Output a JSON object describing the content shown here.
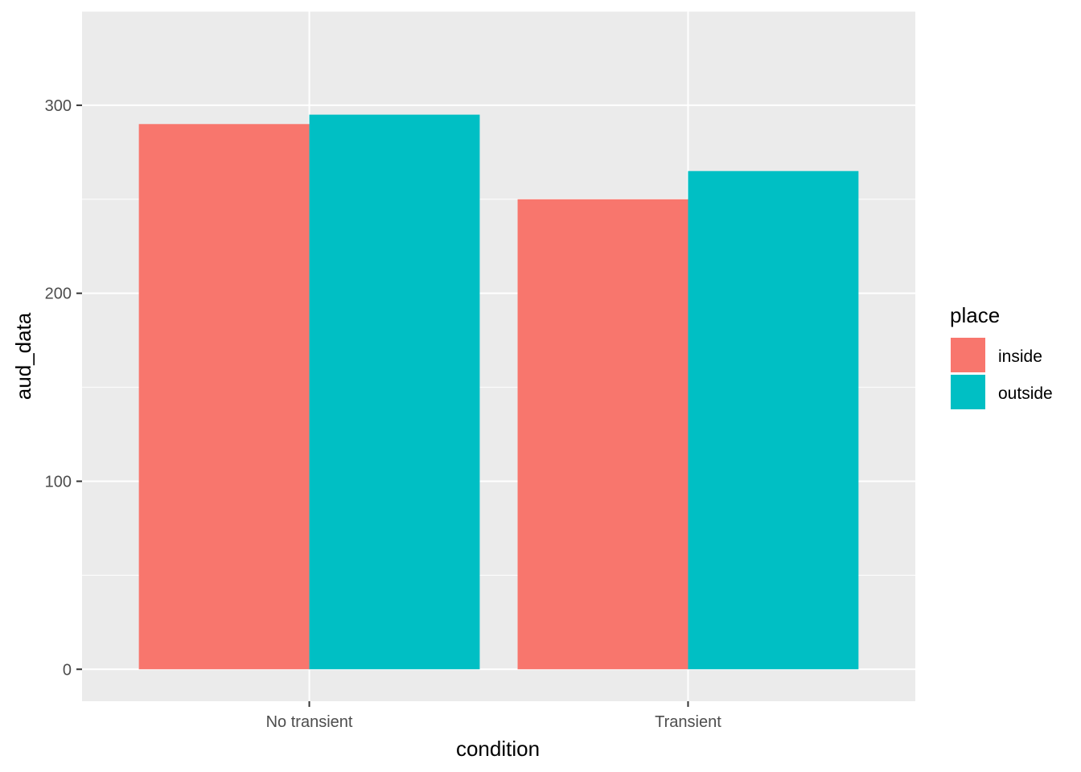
{
  "chart_data": {
    "type": "bar",
    "title": "",
    "xlabel": "condition",
    "ylabel": "aud_data",
    "categories": [
      "No transient",
      "Transient"
    ],
    "series": [
      {
        "name": "inside",
        "values": [
          290,
          250
        ],
        "color": "#F8766D"
      },
      {
        "name": "outside",
        "values": [
          295,
          265
        ],
        "color": "#00BFC4"
      }
    ],
    "ylim": [
      -17,
      350
    ],
    "yticks": [
      0,
      100,
      200,
      300
    ],
    "grid": true,
    "panel_color": "#EBEBEB",
    "gridline_color": "#FFFFFF",
    "legend": {
      "title": "place",
      "position": "right"
    }
  }
}
